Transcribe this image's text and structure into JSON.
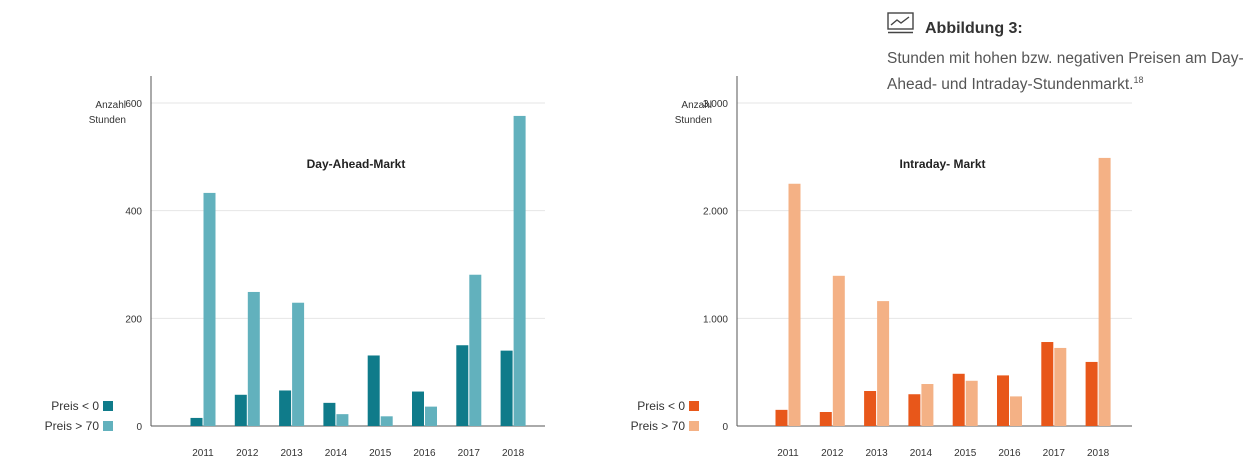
{
  "figure": {
    "title": "Abbildung 3:",
    "subtitle": "Stunden mit hohen bzw. negativen Preisen am Day-Ahead- und Intraday-Stundenmarkt.",
    "footnote": "18",
    "icon": "line-chart-icon"
  },
  "chart_data": [
    {
      "type": "bar",
      "title": "Day-Ahead-Markt",
      "ylabel": "Anzahl Stunden",
      "ylim": [
        0,
        600
      ],
      "yticks": [
        0,
        200,
        400,
        600
      ],
      "ytick_labels": [
        "0",
        "200",
        "400",
        "600"
      ],
      "grid": true,
      "legend": "bottom-left",
      "categories": [
        "2011",
        "2012",
        "2013",
        "2014",
        "2015",
        "2016",
        "2017",
        "2018"
      ],
      "series": [
        {
          "name": "Preis <   0",
          "color": "#0f7b8a",
          "values": [
            15,
            58,
            66,
            43,
            131,
            64,
            150,
            140
          ]
        },
        {
          "name": "Preis > 70",
          "color": "#62b1bd",
          "values": [
            433,
            249,
            229,
            22,
            18,
            36,
            281,
            576
          ]
        }
      ]
    },
    {
      "type": "bar",
      "title": "Intraday- Markt",
      "ylabel": "Anzahl Stunden",
      "ylim": [
        0,
        3000
      ],
      "yticks": [
        0,
        1000,
        2000,
        3000
      ],
      "ytick_labels": [
        "0",
        "1.000",
        "2.000",
        "3.000"
      ],
      "grid": true,
      "legend": "bottom-left",
      "categories": [
        "2011",
        "2012",
        "2013",
        "2014",
        "2015",
        "2016",
        "2017",
        "2018"
      ],
      "series": [
        {
          "name": "Preis <   0",
          "color": "#e8571a",
          "values": [
            150,
            130,
            325,
            295,
            485,
            470,
            780,
            595
          ]
        },
        {
          "name": "Preis > 70",
          "color": "#f4b185",
          "values": [
            2250,
            1395,
            1160,
            390,
            420,
            275,
            725,
            2490
          ]
        }
      ]
    }
  ]
}
